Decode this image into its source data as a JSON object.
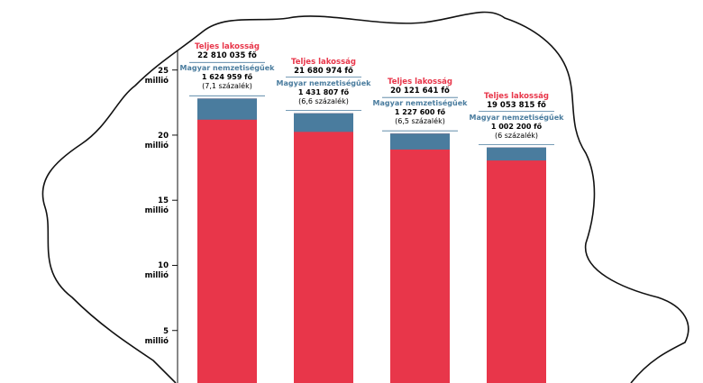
{
  "chart_data": {
    "type": "bar",
    "categories": [
      null,
      null,
      null,
      null
    ],
    "series": [
      {
        "name": "Teljes lakosság",
        "color": "#e8364a",
        "values": [
          22810035,
          21680974,
          20121641,
          19053815
        ],
        "value_labels": [
          "22 810 035 fő",
          "21 680 974 fő",
          "20 121 641 fő",
          "19 053 815 fő"
        ]
      },
      {
        "name": "Magyar nemzetiségűek",
        "color": "#4a7c9e",
        "values": [
          1624959,
          1431807,
          1227600,
          1002200
        ],
        "value_labels": [
          "1 624 959 fő",
          "1 431 807 fő",
          "1 227 600 fő",
          "1 002 200 fő"
        ],
        "shares": [
          7.1,
          6.6,
          6.5,
          6
        ],
        "share_labels": [
          "(7,1 százalék)",
          "(6,6 százalék)",
          "(6,5 százalék)",
          "(6 százalék)"
        ]
      }
    ],
    "ylim": [
      0,
      26500000
    ],
    "yticks": [
      {
        "value": 5000000,
        "label": "5 millió"
      },
      {
        "value": 10000000,
        "label": "10 millió"
      },
      {
        "value": 15000000,
        "label": "15 millió"
      },
      {
        "value": 20000000,
        "label": "20 millió"
      },
      {
        "value": 25000000,
        "label": "25 millió"
      }
    ]
  }
}
